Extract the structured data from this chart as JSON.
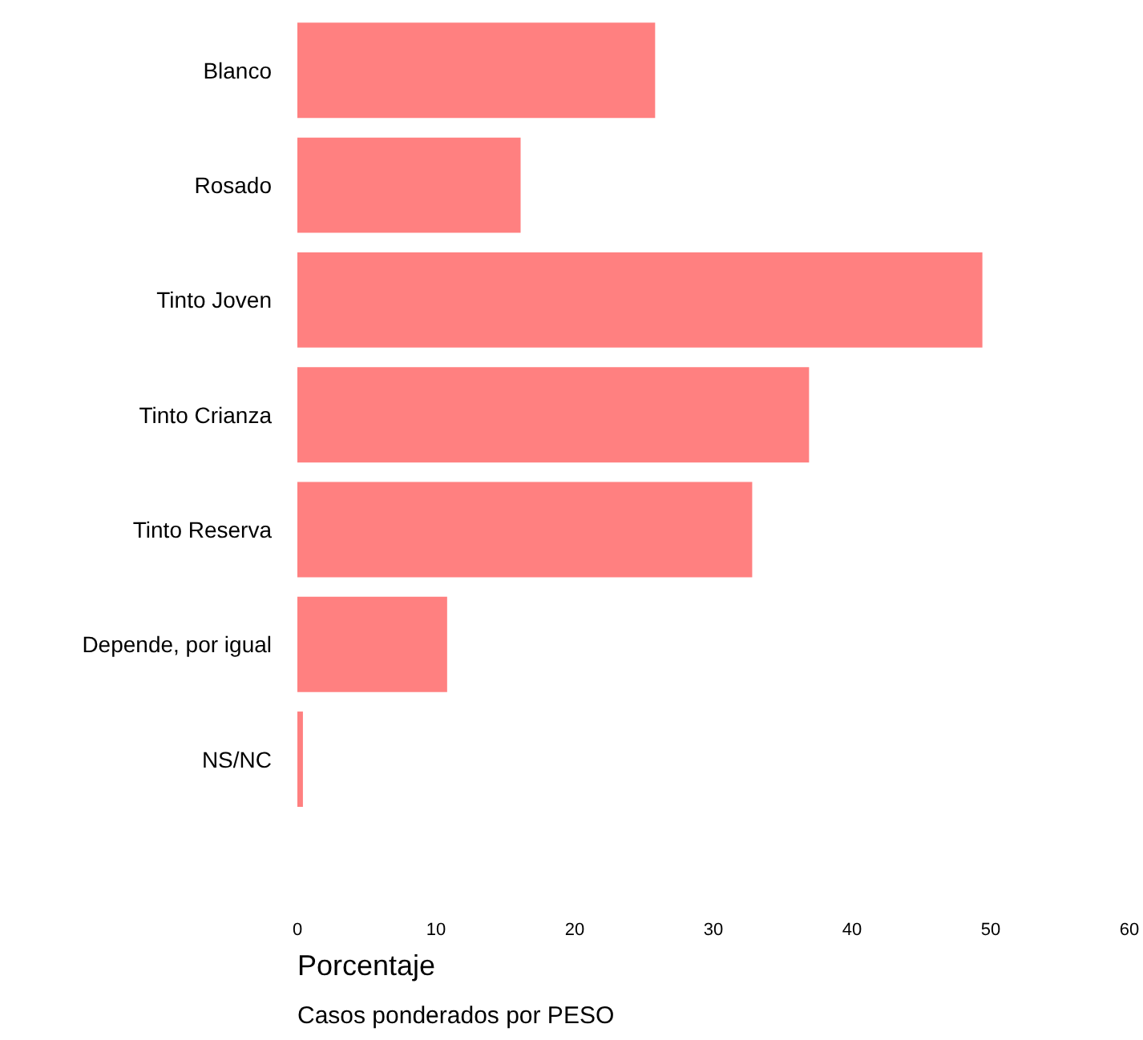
{
  "chart_data": {
    "type": "bar",
    "orientation": "horizontal",
    "xlabel": "Porcentaje",
    "categories": [
      "Blanco",
      "Rosado",
      "Tinto Joven",
      "Tinto Crianza",
      "Tinto Reserva",
      "Depende, por igual",
      "NS/NC"
    ],
    "values": [
      25.8,
      16.1,
      49.4,
      36.9,
      32.8,
      10.8,
      0.4
    ],
    "color": "#ff8080",
    "xlim": [
      0,
      60
    ],
    "xticks": [
      0,
      10,
      20,
      30,
      40,
      50,
      60
    ],
    "grid": false,
    "annotations": [
      "Casos ponderados por PESO"
    ]
  }
}
